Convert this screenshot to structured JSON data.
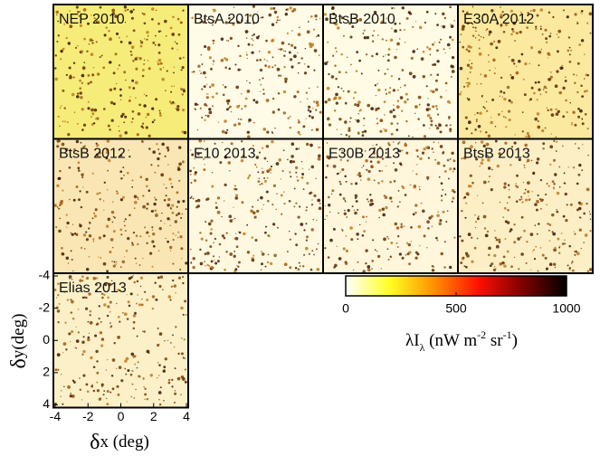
{
  "chart_data": {
    "type": "image-grid",
    "panels": [
      {
        "label": "NEP 2010",
        "color": "#f6ec7a"
      },
      {
        "label": "BtsA 2010",
        "color": "#fffbe6"
      },
      {
        "label": "BtsB 2010",
        "color": "#fffbe4"
      },
      {
        "label": "E30A 2012",
        "color": "#fbe9a0"
      },
      {
        "label": "BtsB 2012",
        "color": "#fae6b4"
      },
      {
        "label": "E10 2013",
        "color": "#fff8e0"
      },
      {
        "label": "E30B 2013",
        "color": "#fff6dc"
      },
      {
        "label": "BtsB 2013",
        "color": "#fcefc6"
      },
      {
        "label": "Elias 2013",
        "color": "#fcf0c8"
      }
    ],
    "xlabel": {
      "symbol": "δ",
      "text": "x (deg)"
    },
    "ylabel": {
      "symbol": "δ",
      "text": "y(deg)"
    },
    "xlim": [
      -4,
      4
    ],
    "xticks": [
      -4,
      -2,
      0,
      2,
      4
    ],
    "ylim": [
      -4,
      4
    ],
    "y_inverted": true,
    "yticks": [
      -4,
      -2,
      0,
      2,
      4
    ],
    "colorbar": {
      "lim": [
        0,
        1000
      ],
      "ticks": [
        0,
        500,
        1000
      ],
      "colormap": [
        "#ffffff",
        "#ffff20",
        "#ff9000",
        "#ff1000",
        "#800000",
        "#000000"
      ],
      "label": [
        {
          "text": "λI",
          "style": "normal"
        },
        {
          "text": "λ",
          "style": "sub"
        },
        {
          "text": " (nW m",
          "style": "normal"
        },
        {
          "text": "-2",
          "style": "sup"
        },
        {
          "text": " sr",
          "style": "normal"
        },
        {
          "text": "-1",
          "style": "sup"
        },
        {
          "text": ")",
          "style": "normal"
        }
      ]
    }
  }
}
